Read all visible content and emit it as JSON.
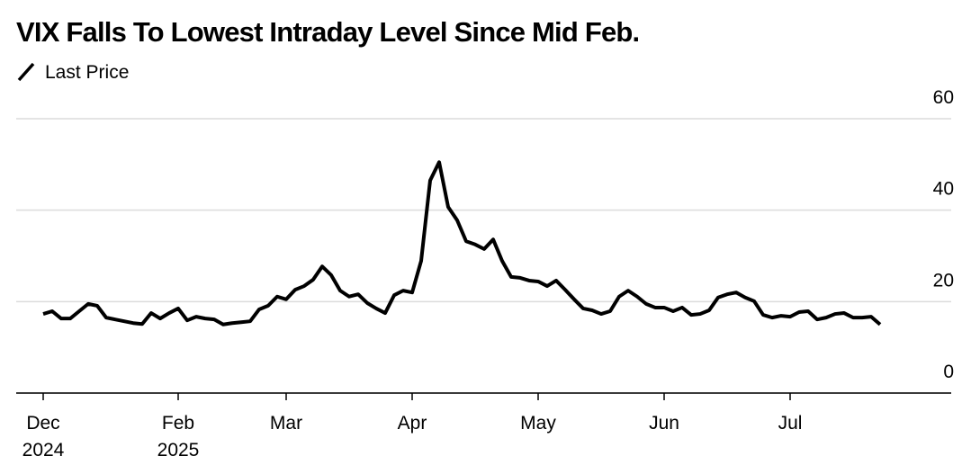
{
  "chart_data": {
    "type": "line",
    "title": "VIX Falls To Lowest Intraday Level Since Mid Feb.",
    "categories": [
      "Dec 2024",
      null,
      null,
      null,
      null,
      null,
      null,
      null,
      null,
      null,
      null,
      null,
      null,
      null,
      null,
      "Feb 2025",
      null,
      null,
      null,
      null,
      null,
      null,
      null,
      null,
      null,
      null,
      null,
      "Mar",
      null,
      null,
      null,
      null,
      null,
      null,
      null,
      null,
      null,
      null,
      null,
      null,
      null,
      "Apr",
      null,
      null,
      null,
      null,
      null,
      null,
      null,
      null,
      null,
      null,
      null,
      null,
      null,
      "May",
      null,
      null,
      null,
      null,
      null,
      null,
      null,
      null,
      null,
      null,
      null,
      null,
      null,
      "Jun",
      null,
      null,
      null,
      null,
      null,
      null,
      null,
      null,
      null,
      null,
      null,
      null,
      null,
      "Jul",
      null,
      null,
      null,
      null,
      null,
      null,
      null,
      null,
      null,
      null
    ],
    "series": [
      {
        "name": "Last Price",
        "color": "#000000",
        "values": [
          17.3,
          17.9,
          16.3,
          16.3,
          17.9,
          19.5,
          19.1,
          16.5,
          16.1,
          15.7,
          15.3,
          15.1,
          17.5,
          16.3,
          17.5,
          18.5,
          15.9,
          16.7,
          16.3,
          16.1,
          15.0,
          15.3,
          15.5,
          15.7,
          18.3,
          19.1,
          21.1,
          20.5,
          22.6,
          23.4,
          24.8,
          27.7,
          25.8,
          22.4,
          21.1,
          21.6,
          19.7,
          18.5,
          17.5,
          21.4,
          22.4,
          22.0,
          28.9,
          46.5,
          50.5,
          40.7,
          37.8,
          33.2,
          32.5,
          31.5,
          33.6,
          28.9,
          25.4,
          25.2,
          24.6,
          24.4,
          23.4,
          24.6,
          22.6,
          20.5,
          18.5,
          18.1,
          17.3,
          17.9,
          21.1,
          22.4,
          21.1,
          19.5,
          18.7,
          18.7,
          17.9,
          18.7,
          17.1,
          17.3,
          18.1,
          20.9,
          21.6,
          22.0,
          20.9,
          20.1,
          17.1,
          16.5,
          16.9,
          16.7,
          17.7,
          17.9,
          16.1,
          16.5,
          17.3,
          17.5,
          16.5,
          16.5,
          16.7,
          15.0
        ]
      }
    ],
    "ylim": [
      0,
      60
    ],
    "yticks": [
      0,
      20,
      40,
      60
    ],
    "grid": true
  }
}
